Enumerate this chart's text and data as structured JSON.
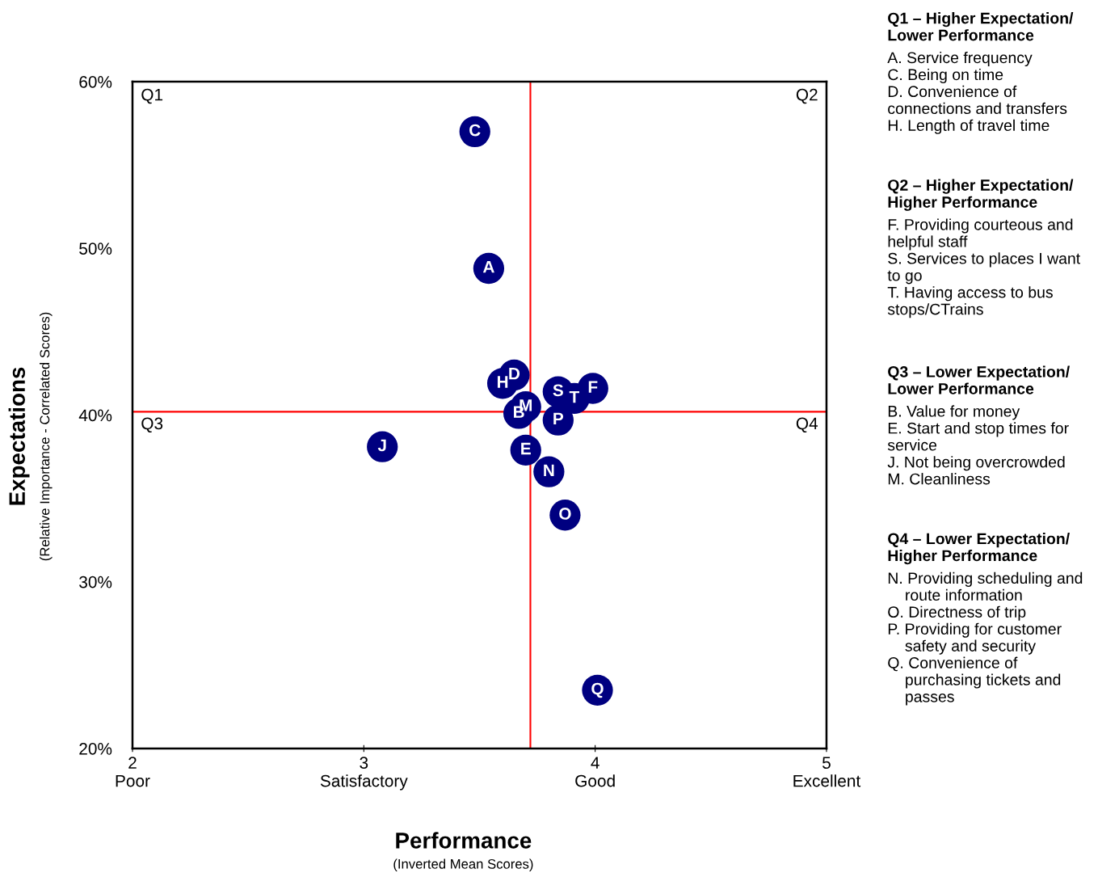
{
  "chart_data": {
    "type": "scatter",
    "xlabel": "Performance\n(Inverted Mean Scores)",
    "ylabel": "Expectations\n(Relative Importance - Correlated Scores)",
    "xlim": [
      2,
      5
    ],
    "ylim": [
      20,
      60
    ],
    "xticks": [
      {
        "value": 2,
        "label": "2\nPoor"
      },
      {
        "value": 3,
        "label": "3\nSatisfactory"
      },
      {
        "value": 4,
        "label": "4\nGood"
      },
      {
        "value": 5,
        "label": "5\nExcellent"
      }
    ],
    "yticks": [
      {
        "value": 20,
        "label": "20%"
      },
      {
        "value": 30,
        "label": "30%"
      },
      {
        "value": 40,
        "label": "40%"
      },
      {
        "value": 50,
        "label": "50%"
      },
      {
        "value": 60,
        "label": "60%"
      }
    ],
    "grid": false,
    "legend": false,
    "marker": "circle",
    "series": [
      {
        "name": "C",
        "color": "#000080",
        "x": [
          3.48
        ],
        "values": [
          57.0
        ]
      },
      {
        "name": "A",
        "color": "#000080",
        "x": [
          3.54
        ],
        "values": [
          48.8
        ]
      },
      {
        "name": "J",
        "color": "#000080",
        "x": [
          3.08
        ],
        "values": [
          38.1
        ]
      },
      {
        "name": "H",
        "color": "#000080",
        "x": [
          3.6
        ],
        "values": [
          41.9
        ]
      },
      {
        "name": "D",
        "color": "#000080",
        "x": [
          3.65
        ],
        "values": [
          42.4
        ]
      },
      {
        "name": "M",
        "color": "#000080",
        "x": [
          3.7
        ],
        "values": [
          40.5
        ]
      },
      {
        "name": "B",
        "color": "#000080",
        "x": [
          3.67
        ],
        "values": [
          40.1
        ]
      },
      {
        "name": "E",
        "color": "#000080",
        "x": [
          3.7
        ],
        "values": [
          37.9
        ]
      },
      {
        "name": "N",
        "color": "#000080",
        "x": [
          3.8
        ],
        "values": [
          36.6
        ]
      },
      {
        "name": "O",
        "color": "#000080",
        "x": [
          3.87
        ],
        "values": [
          34.0
        ]
      },
      {
        "name": "S",
        "color": "#000080",
        "x": [
          3.84
        ],
        "values": [
          41.4
        ]
      },
      {
        "name": "P",
        "color": "#000080",
        "x": [
          3.84
        ],
        "values": [
          39.7
        ]
      },
      {
        "name": "T",
        "color": "#000080",
        "x": [
          3.91
        ],
        "values": [
          41.0
        ]
      },
      {
        "name": "F",
        "color": "#000080",
        "x": [
          3.99
        ],
        "values": [
          41.6
        ]
      },
      {
        "name": "Q",
        "color": "#000080",
        "x": [
          4.01
        ],
        "values": [
          23.5
        ]
      }
    ],
    "ref_lines": [
      {
        "axis": "x",
        "value": 3.72,
        "color": "#ff0000"
      },
      {
        "axis": "y",
        "value": 40.2,
        "color": "#ff0000"
      }
    ],
    "annotations": [
      "Q1",
      "Q2",
      "Q3",
      "Q4",
      "Q1 – Higher Expectation/\nLower Performance",
      "A. Service frequency\nC. Being on time\nD. Convenience of\nconnections and transfers\nH. Length of travel time",
      "Q2 – Higher Expectation/\nHigher Performance",
      "F. Providing courteous and\nhelpful staff\nS. Services to places I want\nto go\nT. Having access to bus\nstops/CTrains",
      "Q3 – Lower Expectation/\nLower Performance",
      "B. Value for money\nE. Start and stop times for\nservice\nJ. Not being overcrowded\nM. Cleanliness",
      "Q4 – Lower Expectation/\nHigher Performance",
      "N. Providing scheduling and\n    route information\nO. Directness of trip\nP. Providing for customer\n    safety and security\nQ. Convenience of\n    purchasing tickets and\n    passes"
    ]
  }
}
